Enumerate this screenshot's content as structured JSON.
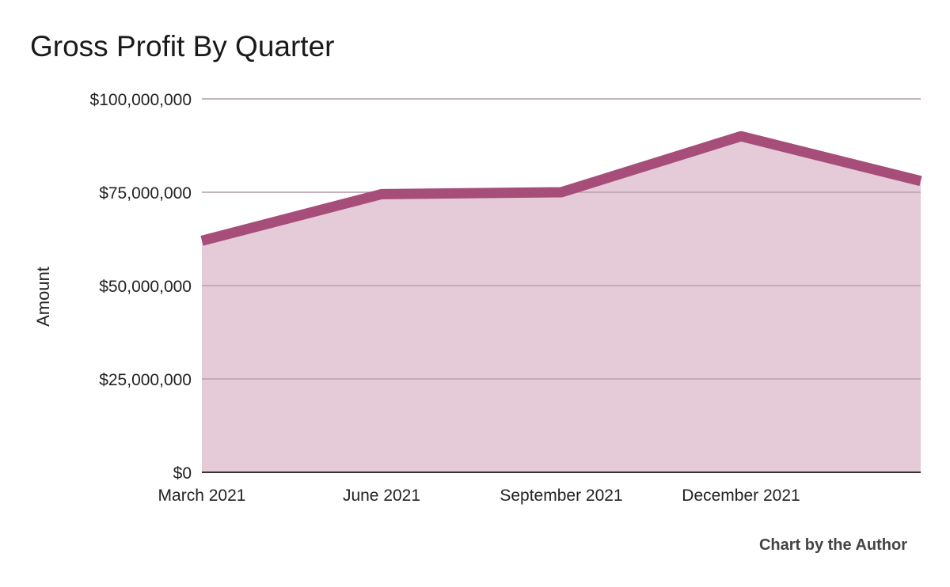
{
  "chart_data": {
    "type": "area",
    "title": "Gross Profit By Quarter",
    "xlabel": "",
    "ylabel": "Amount",
    "categories": [
      "March 2021",
      "June 2021",
      "September 2021",
      "December 2021",
      ""
    ],
    "series": [
      {
        "name": "Gross Profit",
        "values": [
          62000000,
          74500000,
          75000000,
          90000000,
          78000000
        ]
      }
    ],
    "ylim": [
      0,
      100000000
    ],
    "yticks": [
      0,
      25000000,
      50000000,
      75000000,
      100000000
    ],
    "ytick_labels": [
      "$0",
      "$25,000,000",
      "$50,000,000",
      "$75,000,000",
      "$100,000,000"
    ],
    "grid": true,
    "legend": "none",
    "colors": {
      "line": "#a64d79",
      "fill": "#e3c8d5",
      "grid": "#bbbbbb",
      "baseline": "#333333"
    }
  },
  "footer": {
    "credit": "Chart by the Author"
  }
}
